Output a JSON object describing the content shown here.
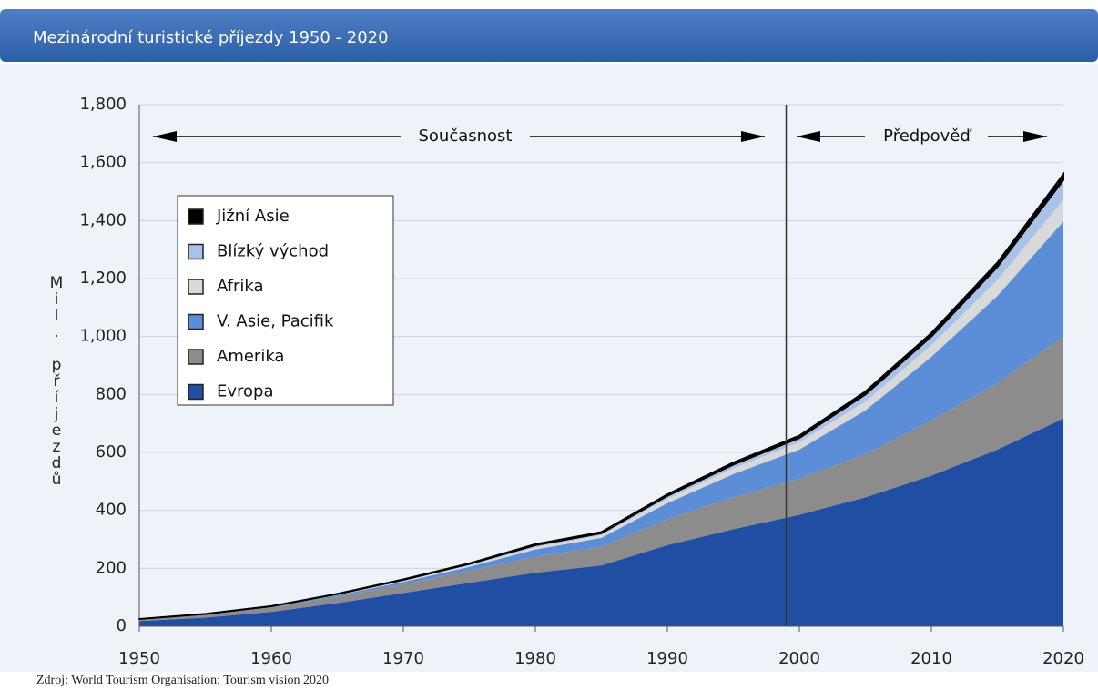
{
  "chart_data": {
    "type": "stacked_area",
    "title": "Mezinárodní turistické příjezdy 1950 - 2020",
    "y_label": "Mil. příjezdů",
    "source": "Zdroj: World Tourism Organisation: Tourism vision 2020",
    "annotations": {
      "present": "Současnost",
      "forecast": "Předpověď",
      "divider_x": 1999
    },
    "x": [
      1950,
      1955,
      1960,
      1965,
      1970,
      1975,
      1980,
      1985,
      1990,
      1995,
      2000,
      2005,
      2010,
      2015,
      2020
    ],
    "series": [
      {
        "name": "Evropa",
        "color": "#1f4ea3",
        "values": [
          18,
          30,
          50,
          80,
          115,
          150,
          185,
          210,
          280,
          335,
          385,
          445,
          520,
          610,
          717
        ]
      },
      {
        "name": "Amerika",
        "color": "#8c8c8c",
        "values": [
          6,
          10,
          15,
          22,
          30,
          42,
          55,
          65,
          90,
          110,
          125,
          150,
          190,
          230,
          283
        ]
      },
      {
        "name": "V. Asie, Pacifik",
        "color": "#5b8ed6",
        "values": [
          0.5,
          1,
          2,
          5,
          8,
          13,
          25,
          30,
          55,
          80,
          100,
          150,
          220,
          300,
          397
        ]
      },
      {
        "name": "Afrika",
        "color": "#d9d9d9",
        "values": [
          0.5,
          1,
          1,
          2,
          4,
          5,
          8,
          10,
          15,
          20,
          25,
          30,
          40,
          55,
          75
        ]
      },
      {
        "name": "Blízký východ",
        "color": "#a9c3e8",
        "values": [
          0.2,
          0.5,
          1,
          2,
          3,
          5,
          7,
          6,
          10,
          13,
          15,
          25,
          30,
          45,
          68
        ]
      },
      {
        "name": "Jižní Asie",
        "color": "#000000",
        "values": [
          0.1,
          0.2,
          0.5,
          1,
          2,
          2,
          3,
          4,
          5,
          7,
          8,
          10,
          12,
          15,
          20
        ]
      }
    ],
    "xlim": [
      1950,
      2020
    ],
    "xticks": [
      1950,
      1960,
      1970,
      1980,
      1990,
      2000,
      2010,
      2020
    ],
    "ylim": [
      0,
      1800
    ],
    "yticks": [
      0,
      200,
      400,
      600,
      800,
      {
        "value": 1000,
        "label": "1,000"
      },
      {
        "value": 1200,
        "label": "1,200"
      },
      {
        "value": 1400,
        "label": "1,400"
      },
      {
        "value": 1600,
        "label": "1,600"
      },
      {
        "value": 1800,
        "label": "1,800"
      }
    ],
    "grid": true
  }
}
